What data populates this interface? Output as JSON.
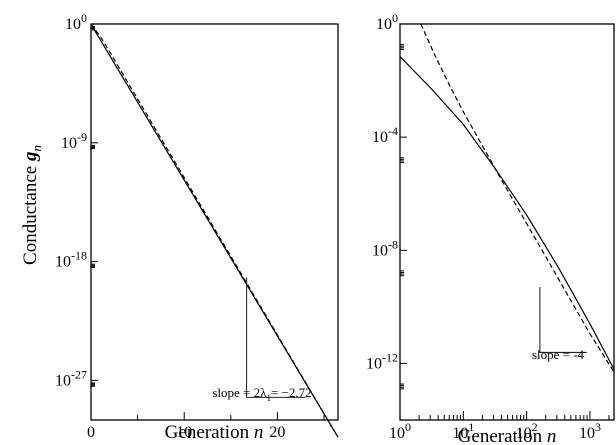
{
  "chart_data": [
    {
      "type": "line",
      "panel": "left",
      "ylabel_main": "Conductance",
      "ylabel_var": "g",
      "ylabel_sub": "n",
      "xlabel_main": "Generation",
      "xlabel_var": "n",
      "x_scale": "linear",
      "y_scale": "log",
      "xlim": [
        0,
        26.5
      ],
      "ylim_exp": [
        -30,
        0
      ],
      "x_ticks": [
        0,
        10,
        20
      ],
      "x_tick_labels": [
        "0",
        "10",
        "20"
      ],
      "y_ticks_exp": [
        0,
        -9,
        -18,
        -27
      ],
      "y_tick_base": "10",
      "y_tick_exps": [
        "0",
        "-9",
        "-18",
        "-27"
      ],
      "series": [
        {
          "style": "solid",
          "x": [
            0,
            26.5
          ],
          "log10_y": [
            -0.02,
            -31.3
          ]
        },
        {
          "style": "dashed",
          "x": [
            0,
            1,
            2,
            26.5
          ],
          "log10_y": [
            0,
            -0.95,
            -2.1,
            -31.3
          ]
        }
      ],
      "annotation": {
        "text_prefix": "slope = 2",
        "text_sym": "λ",
        "text_sub": "1",
        "text_suffix": "= −2.72",
        "slope_value": -2.72,
        "triangle": {
          "x0": 16.7,
          "x1": 23.0,
          "log10_y_top": -19.2
        }
      }
    },
    {
      "type": "line",
      "panel": "right",
      "xlabel_main": "Generation",
      "xlabel_var": "n",
      "x_scale": "log",
      "y_scale": "log",
      "xlim_exp": [
        0,
        3.38
      ],
      "ylim_exp": [
        -14,
        0
      ],
      "x_tick_base": "10",
      "x_tick_exps": [
        "0",
        "1",
        "2",
        "3"
      ],
      "y_ticks_exp": [
        0,
        -4,
        -8,
        -12
      ],
      "y_tick_base": "10",
      "y_tick_exps": [
        "0",
        "-4",
        "-8",
        "-12"
      ],
      "series": [
        {
          "style": "solid",
          "log10_x": [
            0,
            0.5,
            1,
            1.5,
            2,
            2.5,
            3,
            3.38
          ],
          "log10_y": [
            -1.15,
            -2.3,
            -3.55,
            -5.1,
            -6.75,
            -8.6,
            -10.6,
            -12.2
          ]
        },
        {
          "style": "dashed",
          "log10_x": [
            0.33,
            0.55,
            0.8,
            1,
            1.3,
            1.6,
            2,
            2.5,
            3,
            3.38
          ],
          "log10_y": [
            0,
            -1.1,
            -2.25,
            -3.1,
            -4.3,
            -5.5,
            -7.05,
            -9.0,
            -10.95,
            -12.3
          ]
        }
      ],
      "annotation": {
        "text": "slope = -4",
        "slope_value": -4,
        "triangle": {
          "log10_x0": 2.21,
          "log10_x1": 2.95,
          "log10_y_top": -9.3
        }
      }
    }
  ]
}
